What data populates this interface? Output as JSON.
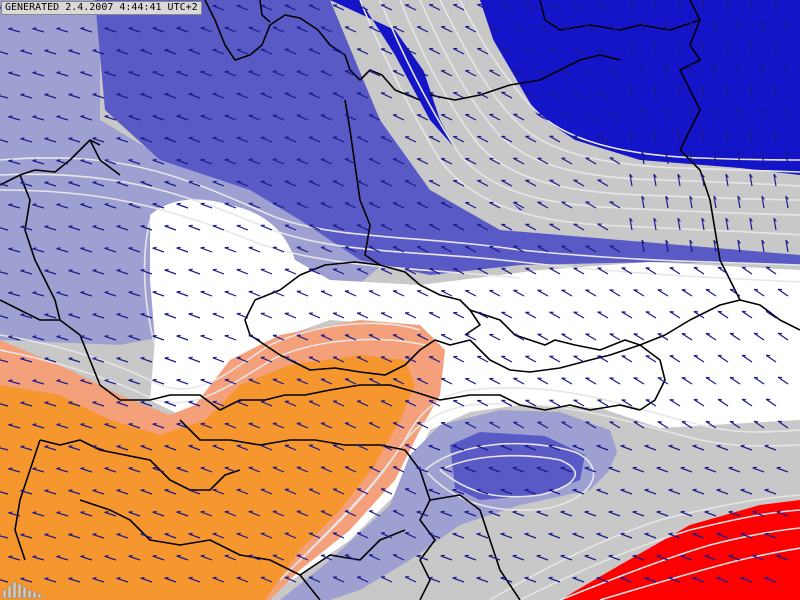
{
  "header": {
    "generated_label": "GENERATED 2.4.2007 4:44:41 UTC+2"
  },
  "legend": {
    "colors": {
      "deep_blue": "#1414c8",
      "mid_blue": "#5a5ac6",
      "pale_blue": "#9ea0d2",
      "grey": "#c8c8c8",
      "white": "#ffffff",
      "orange": "#f5962f",
      "salmon": "#f4a07a",
      "red": "#ff0000",
      "arrow": "#1a1a8c",
      "contour": "#e6e6e6",
      "border": "#000000"
    }
  },
  "logo": {
    "name": "bar-logo-icon"
  }
}
